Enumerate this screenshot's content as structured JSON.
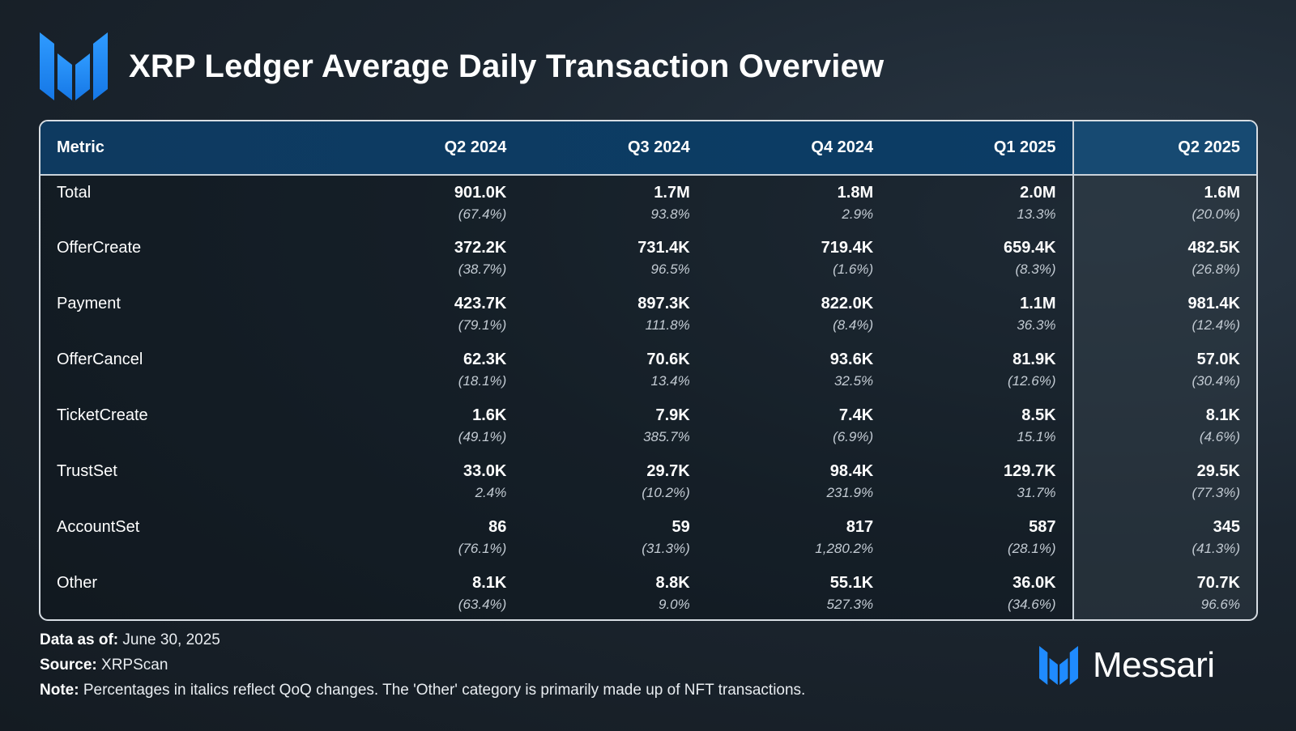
{
  "header": {
    "title": "XRP Ledger Average Daily Transaction Overview",
    "logo_icon": "messari-logo-icon"
  },
  "table": {
    "columns": [
      "Metric",
      "Q2 2024",
      "Q3 2024",
      "Q4 2024",
      "Q1 2025",
      "Q2 2025"
    ],
    "rows": [
      {
        "label": "Total",
        "values": [
          "901.0K",
          "1.7M",
          "1.8M",
          "2.0M",
          "1.6M"
        ],
        "changes": [
          "(67.4%)",
          "93.8%",
          "2.9%",
          "13.3%",
          "(20.0%)"
        ]
      },
      {
        "label": "OfferCreate",
        "values": [
          "372.2K",
          "731.4K",
          "719.4K",
          "659.4K",
          "482.5K"
        ],
        "changes": [
          "(38.7%)",
          "96.5%",
          "(1.6%)",
          "(8.3%)",
          "(26.8%)"
        ]
      },
      {
        "label": "Payment",
        "values": [
          "423.7K",
          "897.3K",
          "822.0K",
          "1.1M",
          "981.4K"
        ],
        "changes": [
          "(79.1%)",
          "111.8%",
          "(8.4%)",
          "36.3%",
          "(12.4%)"
        ]
      },
      {
        "label": "OfferCancel",
        "values": [
          "62.3K",
          "70.6K",
          "93.6K",
          "81.9K",
          "57.0K"
        ],
        "changes": [
          "(18.1%)",
          "13.4%",
          "32.5%",
          "(12.6%)",
          "(30.4%)"
        ]
      },
      {
        "label": "TicketCreate",
        "values": [
          "1.6K",
          "7.9K",
          "7.4K",
          "8.5K",
          "8.1K"
        ],
        "changes": [
          "(49.1%)",
          "385.7%",
          "(6.9%)",
          "15.1%",
          "(4.6%)"
        ]
      },
      {
        "label": "TrustSet",
        "values": [
          "33.0K",
          "29.7K",
          "98.4K",
          "129.7K",
          "29.5K"
        ],
        "changes": [
          "2.4%",
          "(10.2%)",
          "231.9%",
          "31.7%",
          "(77.3%)"
        ]
      },
      {
        "label": "AccountSet",
        "values": [
          "86",
          "59",
          "817",
          "587",
          "345"
        ],
        "changes": [
          "(76.1%)",
          "(31.3%)",
          "1,280.2%",
          "(28.1%)",
          "(41.3%)"
        ]
      },
      {
        "label": "Other",
        "values": [
          "8.1K",
          "8.8K",
          "55.1K",
          "36.0K",
          "70.7K"
        ],
        "changes": [
          "(63.4%)",
          "9.0%",
          "527.3%",
          "(34.6%)",
          "96.6%"
        ]
      }
    ]
  },
  "footer": {
    "data_as_of_label": "Data as of:",
    "data_as_of_value": "June 30, 2025",
    "source_label": "Source:",
    "source_value": "XRPScan",
    "note_label": "Note:",
    "note_value": "Percentages in italics reflect QoQ changes. The 'Other' category is primarily made up of NFT transactions."
  },
  "brand": {
    "name": "Messari",
    "icon": "messari-logo-icon"
  },
  "colors": {
    "accent_blue": "#1a8cff",
    "header_bg": "#0e3a60",
    "last_col_header": "#174a72"
  }
}
